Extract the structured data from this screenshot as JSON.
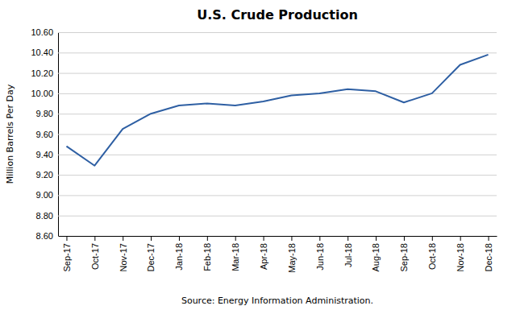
{
  "chart_data": {
    "type": "line",
    "title": "U.S. Crude Production",
    "y_label": "Million Barrels Per Day",
    "x_label": "Source: Energy Information Administration.",
    "categories": [
      "Sep-17",
      "Oct-17",
      "Nov-17",
      "Dec-17",
      "Jan-18",
      "Feb-18",
      "Mar-18",
      "Apr-18",
      "May-18",
      "Jun-18",
      "Jul-18",
      "Aug-18",
      "Sep-18",
      "Oct-18",
      "Nov-18",
      "Dec-18"
    ],
    "values": [
      9.48,
      9.29,
      9.65,
      9.8,
      9.88,
      9.9,
      9.88,
      9.92,
      9.98,
      10.0,
      10.04,
      10.02,
      9.91,
      10.0,
      10.28,
      10.38
    ],
    "color": "#2E5FA3",
    "ylim": [
      8.6,
      10.6
    ],
    "yticks": [
      {
        "value": 8.6,
        "label": "8.60"
      },
      {
        "value": 8.8,
        "label": "8.80"
      },
      {
        "value": 9.0,
        "label": "9.00"
      },
      {
        "value": 9.2,
        "label": "9.20"
      },
      {
        "value": 9.4,
        "label": "9.40"
      },
      {
        "value": 9.6,
        "label": "9.60"
      },
      {
        "value": 9.8,
        "label": "9.80"
      },
      {
        "value": 10.0,
        "label": "10.00"
      },
      {
        "value": 10.2,
        "label": "10.20"
      },
      {
        "value": 10.4,
        "label": "10.40"
      },
      {
        "value": 10.6,
        "label": "10.60"
      }
    ],
    "grid": true
  }
}
